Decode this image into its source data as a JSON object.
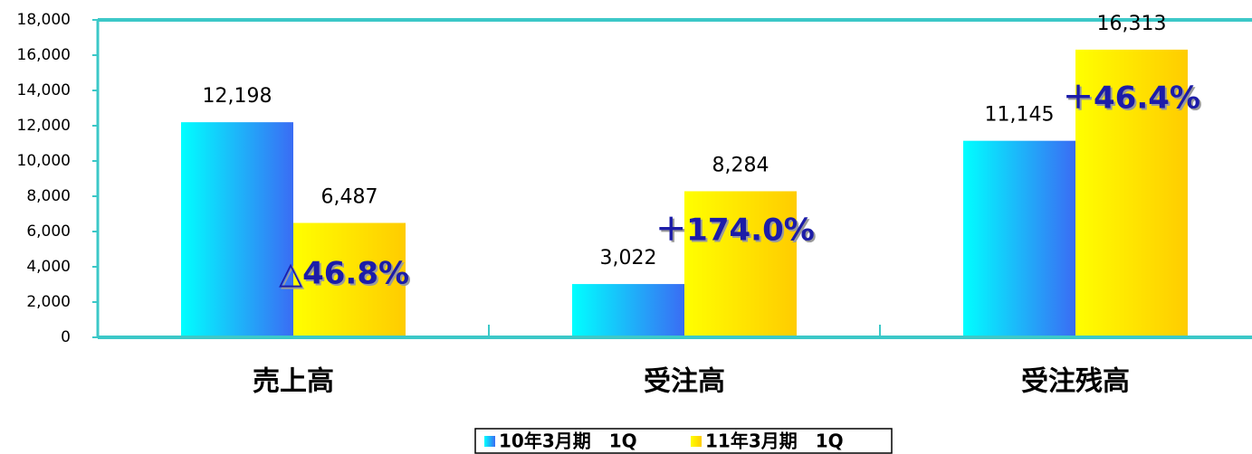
{
  "chart_data": {
    "type": "bar",
    "categories": [
      "売上高",
      "受注高",
      "受注残高"
    ],
    "series": [
      {
        "name": "10年3月期　1Q",
        "color": "#00ffff",
        "gradient": [
          "#00ffff",
          "#3a6cf4"
        ],
        "values": [
          12198,
          3022,
          11145
        ],
        "value_labels": [
          "12,198",
          "3,022",
          "11,145"
        ]
      },
      {
        "name": "11年3月期　1Q",
        "color": "#ffff00",
        "gradient": [
          "#ffff00",
          "#ffcc00"
        ],
        "values": [
          6487,
          8284,
          16313
        ],
        "value_labels": [
          "6,487",
          "8,284",
          "16,313"
        ]
      }
    ],
    "annotations": [
      "△46.8%",
      "＋174.0%",
      "＋46.4%"
    ],
    "ylim": [
      0,
      18000
    ],
    "yticks": [
      0,
      {
        "value": 2000,
        "label": "2,000"
      },
      {
        "value": 4000,
        "label": "4,000"
      },
      {
        "value": 6000,
        "label": "6,000"
      },
      {
        "value": 8000,
        "label": "8,000"
      },
      {
        "value": 10000,
        "label": "10,000"
      },
      {
        "value": 12000,
        "label": "12,000"
      },
      {
        "value": 14000,
        "label": "14,000"
      },
      {
        "value": 16000,
        "label": "16,000"
      },
      {
        "value": 18000,
        "label": "18,000"
      }
    ],
    "legend": "bottom"
  }
}
